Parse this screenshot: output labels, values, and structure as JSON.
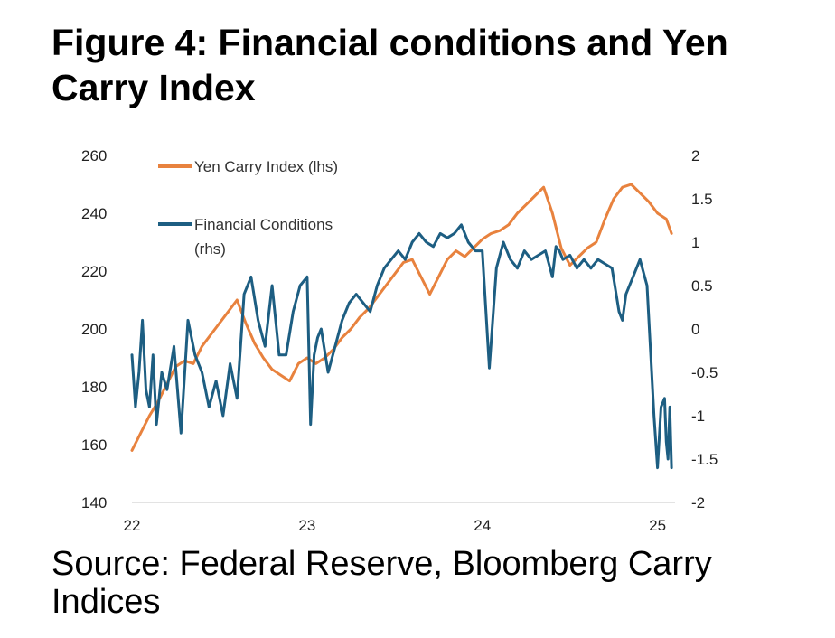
{
  "title": "Figure 4: Financial conditions and Yen Carry Index",
  "source": "Source: Federal Reserve, Bloomberg Carry Indices",
  "colors": {
    "yen": "#E8823E",
    "fc": "#1D5E82",
    "axis": "#DADADA"
  },
  "chart_data": {
    "type": "line",
    "grid": false,
    "legend_placement": "top-left",
    "x_tick_labels": [
      "22",
      "23",
      "24",
      "25"
    ],
    "x_ticks": [
      2022,
      2023,
      2024,
      2025
    ],
    "xlim": [
      2022.0,
      2025.1
    ],
    "y_left": {
      "ylim": [
        140,
        260
      ],
      "ticks": [
        "140",
        "160",
        "180",
        "200",
        "220",
        "240",
        "260"
      ]
    },
    "y_right": {
      "ylim": [
        -2,
        2
      ],
      "ticks": [
        "-2",
        "-1.5",
        "-1",
        "-0.5",
        "0",
        "0.5",
        "1",
        "1.5",
        "2"
      ]
    },
    "series": [
      {
        "name": "Yen Carry Index (lhs)",
        "axis": "left",
        "color": "#E8823E",
        "x": [
          2022.0,
          2022.05,
          2022.1,
          2022.15,
          2022.2,
          2022.25,
          2022.3,
          2022.35,
          2022.4,
          2022.45,
          2022.5,
          2022.55,
          2022.6,
          2022.65,
          2022.7,
          2022.75,
          2022.8,
          2022.85,
          2022.9,
          2022.95,
          2023.0,
          2023.05,
          2023.1,
          2023.15,
          2023.2,
          2023.25,
          2023.3,
          2023.35,
          2023.4,
          2023.45,
          2023.5,
          2023.55,
          2023.6,
          2023.65,
          2023.7,
          2023.75,
          2023.8,
          2023.85,
          2023.9,
          2023.95,
          2024.0,
          2024.05,
          2024.1,
          2024.15,
          2024.2,
          2024.25,
          2024.3,
          2024.35,
          2024.4,
          2024.45,
          2024.5,
          2024.55,
          2024.6,
          2024.65,
          2024.7,
          2024.75,
          2024.8,
          2024.85,
          2024.9,
          2024.95,
          2025.0,
          2025.05,
          2025.08
        ],
        "values": [
          158,
          164,
          170,
          175,
          181,
          187,
          189,
          188,
          194,
          198,
          202,
          206,
          210,
          202,
          195,
          190,
          186,
          184,
          182,
          188,
          190,
          188,
          190,
          193,
          197,
          200,
          204,
          207,
          211,
          215,
          219,
          223,
          224,
          218,
          212,
          218,
          224,
          227,
          225,
          228,
          231,
          233,
          234,
          236,
          240,
          243,
          246,
          249,
          240,
          228,
          222,
          225,
          228,
          230,
          238,
          245,
          249,
          250,
          247,
          244,
          240,
          238,
          233
        ]
      },
      {
        "name": "Financial Conditions (rhs)",
        "axis": "right",
        "color": "#1D5E82",
        "x": [
          2022.0,
          2022.02,
          2022.04,
          2022.06,
          2022.08,
          2022.1,
          2022.12,
          2022.14,
          2022.17,
          2022.2,
          2022.24,
          2022.28,
          2022.32,
          2022.36,
          2022.4,
          2022.44,
          2022.48,
          2022.52,
          2022.56,
          2022.6,
          2022.64,
          2022.68,
          2022.72,
          2022.76,
          2022.8,
          2022.84,
          2022.88,
          2022.92,
          2022.96,
          2023.0,
          2023.02,
          2023.04,
          2023.06,
          2023.08,
          2023.12,
          2023.16,
          2023.2,
          2023.24,
          2023.28,
          2023.32,
          2023.36,
          2023.4,
          2023.44,
          2023.48,
          2023.52,
          2023.56,
          2023.6,
          2023.64,
          2023.68,
          2023.72,
          2023.76,
          2023.8,
          2023.84,
          2023.88,
          2023.92,
          2023.96,
          2024.0,
          2024.04,
          2024.08,
          2024.12,
          2024.16,
          2024.2,
          2024.24,
          2024.28,
          2024.32,
          2024.36,
          2024.4,
          2024.42,
          2024.44,
          2024.46,
          2024.5,
          2024.54,
          2024.58,
          2024.62,
          2024.66,
          2024.7,
          2024.74,
          2024.78,
          2024.8,
          2024.82,
          2024.86,
          2024.9,
          2024.94,
          2024.98,
          2025.0,
          2025.02,
          2025.04,
          2025.05,
          2025.06,
          2025.07,
          2025.08
        ],
        "values": [
          -0.3,
          -0.9,
          -0.5,
          0.1,
          -0.7,
          -0.9,
          -0.3,
          -1.1,
          -0.5,
          -0.7,
          -0.2,
          -1.2,
          0.1,
          -0.3,
          -0.5,
          -0.9,
          -0.6,
          -1.0,
          -0.4,
          -0.8,
          0.4,
          0.6,
          0.1,
          -0.2,
          0.5,
          -0.3,
          -0.3,
          0.2,
          0.5,
          0.6,
          -1.1,
          -0.3,
          -0.1,
          0.0,
          -0.5,
          -0.2,
          0.1,
          0.3,
          0.4,
          0.3,
          0.2,
          0.5,
          0.7,
          0.8,
          0.9,
          0.8,
          1.0,
          1.1,
          1.0,
          0.95,
          1.1,
          1.05,
          1.1,
          1.2,
          1.0,
          0.9,
          0.9,
          -0.45,
          0.7,
          1.0,
          0.8,
          0.7,
          0.9,
          0.8,
          0.85,
          0.9,
          0.6,
          0.95,
          0.9,
          0.8,
          0.85,
          0.7,
          0.8,
          0.7,
          0.8,
          0.75,
          0.7,
          0.2,
          0.1,
          0.4,
          0.6,
          0.8,
          0.5,
          -1.0,
          -1.6,
          -0.9,
          -0.8,
          -1.3,
          -1.5,
          -0.9,
          -1.6
        ]
      }
    ]
  }
}
